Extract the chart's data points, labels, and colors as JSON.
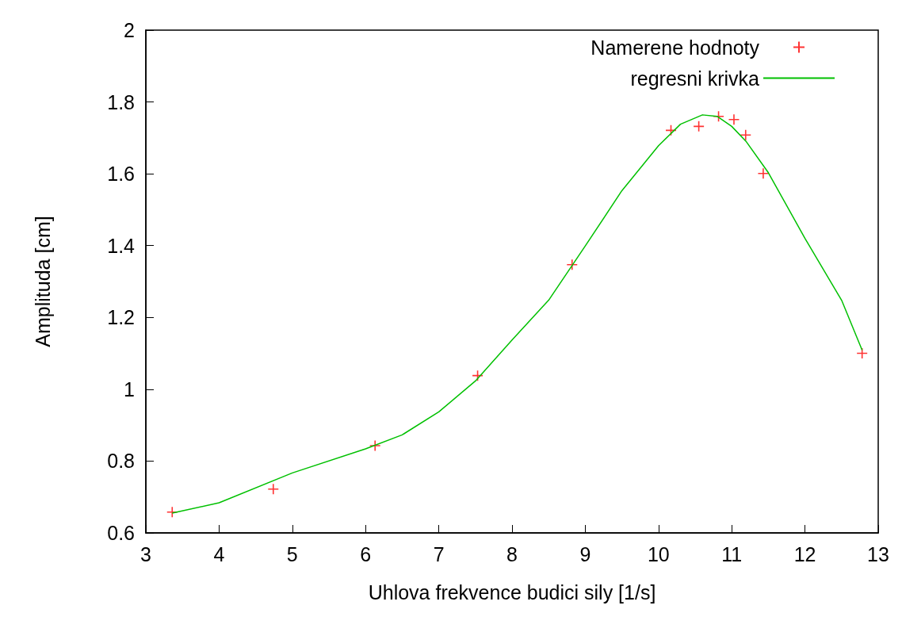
{
  "chart_data": {
    "type": "scatter",
    "xlabel": "Uhlova frekvence budici sily [1/s]",
    "ylabel": "Amplituda [cm]",
    "xlim": [
      3,
      13
    ],
    "xticks": [
      3,
      4,
      5,
      6,
      7,
      8,
      9,
      10,
      11,
      12,
      13
    ],
    "ylim": [
      0.6,
      2
    ],
    "yticks": [
      0.6,
      0.8,
      1,
      1.2,
      1.4,
      1.6,
      1.8,
      2
    ],
    "grid": false,
    "legend": "top right",
    "series": [
      {
        "name": "Namerene hodnoty",
        "type": "scatter",
        "marker": "cross",
        "color": "#ff0000",
        "x": [
          3.36,
          4.74,
          6.13,
          7.53,
          8.82,
          10.17,
          10.55,
          10.82,
          11.03,
          11.19,
          11.43,
          12.78
        ],
        "values": [
          0.658,
          0.722,
          0.843,
          1.038,
          1.347,
          1.721,
          1.732,
          1.76,
          1.751,
          1.708,
          1.601,
          1.1
        ]
      },
      {
        "name": "regresni krivka",
        "type": "line",
        "marker": "none",
        "line_style": "solid",
        "color": "#00c000",
        "x": [
          3.36,
          4,
          5,
          6,
          6.5,
          7,
          7.5,
          8,
          8.5,
          9,
          9.5,
          10,
          10.3,
          10.6,
          10.8,
          11,
          11.2,
          11.5,
          12,
          12.5,
          12.78
        ],
        "values": [
          0.655,
          0.684,
          0.767,
          0.834,
          0.873,
          0.937,
          1.023,
          1.137,
          1.248,
          1.399,
          1.553,
          1.678,
          1.738,
          1.764,
          1.76,
          1.732,
          1.689,
          1.603,
          1.42,
          1.248,
          1.109
        ]
      }
    ]
  }
}
